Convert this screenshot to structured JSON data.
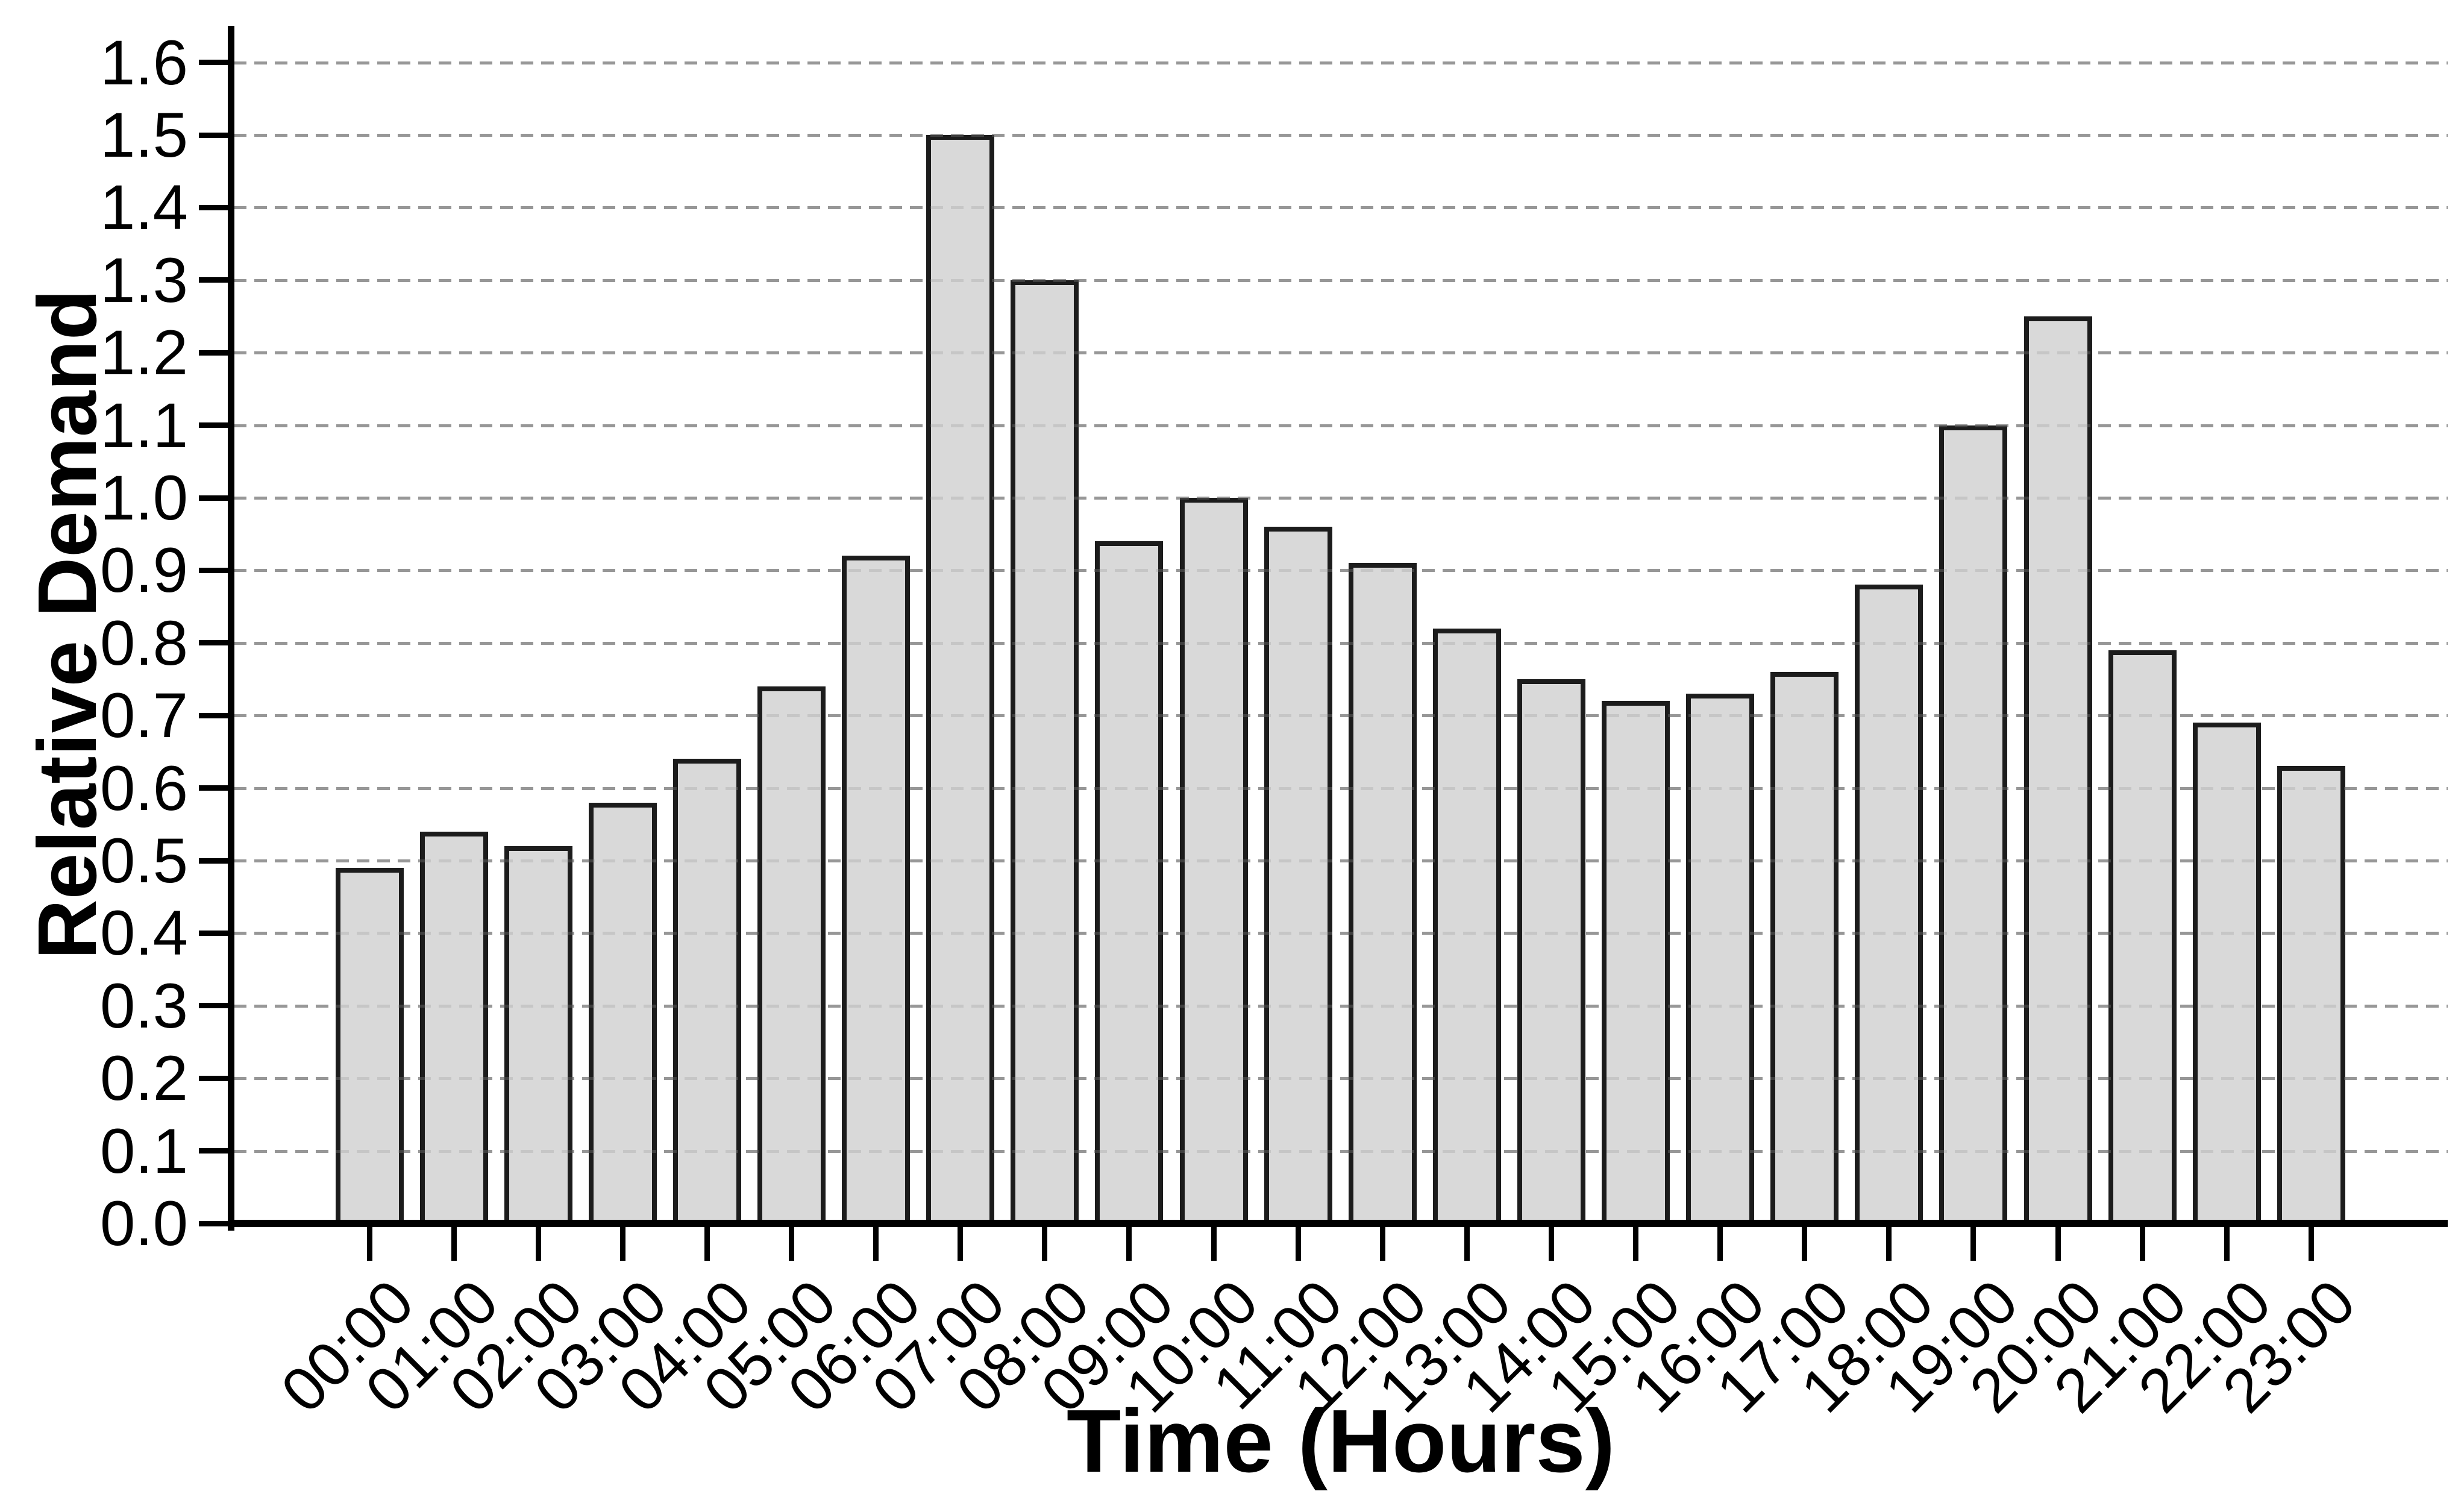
{
  "chart_data": {
    "type": "bar",
    "title": "",
    "xlabel": "Time (Hours)",
    "ylabel": "Relative Demand",
    "categories": [
      "00:00",
      "01:00",
      "02:00",
      "03:00",
      "04:00",
      "05:00",
      "06:00",
      "07:00",
      "08:00",
      "09:00",
      "10:00",
      "11:00",
      "12:00",
      "13:00",
      "14:00",
      "15:00",
      "16:00",
      "17:00",
      "18:00",
      "19:00",
      "20:00",
      "21:00",
      "22:00",
      "23:00"
    ],
    "values": [
      0.49,
      0.54,
      0.52,
      0.58,
      0.64,
      0.74,
      0.92,
      1.5,
      1.3,
      0.94,
      1.0,
      0.96,
      0.91,
      0.82,
      0.75,
      0.72,
      0.73,
      0.76,
      0.88,
      1.1,
      1.25,
      0.79,
      0.69,
      0.63
    ],
    "ytick_labels": [
      "0.0",
      "0.1",
      "0.2",
      "0.3",
      "0.4",
      "0.5",
      "0.6",
      "0.7",
      "0.8",
      "0.9",
      "1.0",
      "1.1",
      "1.2",
      "1.3",
      "1.4",
      "1.5",
      "1.6"
    ],
    "ylim": [
      0,
      1.65
    ],
    "grid": "horizontal-dashed",
    "legend": "none",
    "colors": {
      "bar_fill": "#d9d9d9",
      "bar_edge": "#1c1c1c",
      "gridline": "#979797",
      "axis": "#000000",
      "background": "#ffffff",
      "text": "#000000"
    }
  }
}
